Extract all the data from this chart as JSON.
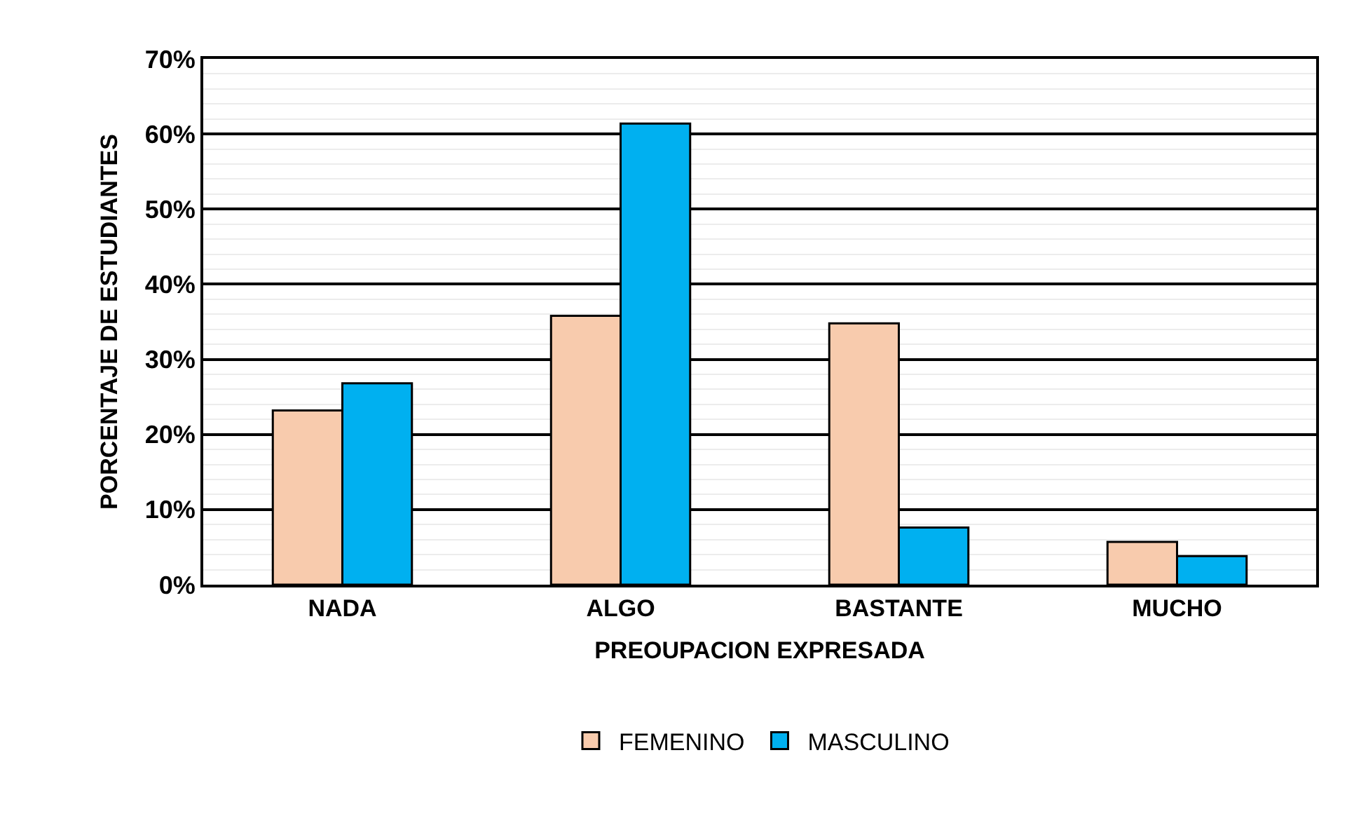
{
  "chart_data": {
    "type": "bar",
    "xlabel": "PREOUPACION EXPRESADA",
    "ylabel": "PORCENTAJE DE ESTUDIANTES",
    "categories": [
      "NADA",
      "ALGO",
      "BASTANTE",
      "MUCHO"
    ],
    "series": [
      {
        "name": "FEMENINO",
        "color": "#f8cbad",
        "values": [
          23.2,
          35.8,
          34.8,
          5.7
        ]
      },
      {
        "name": "MASCULINO",
        "color": "#00b0f0",
        "values": [
          26.8,
          61.4,
          7.6,
          3.8
        ]
      }
    ],
    "ylim": [
      0,
      70
    ],
    "yticks": [
      {
        "value": 0,
        "label": "0%"
      },
      {
        "value": 10,
        "label": "10%"
      },
      {
        "value": 20,
        "label": "20%"
      },
      {
        "value": 30,
        "label": "30%"
      },
      {
        "value": 40,
        "label": "40%"
      },
      {
        "value": 50,
        "label": "50%"
      },
      {
        "value": 60,
        "label": "60%"
      },
      {
        "value": 70,
        "label": "70%"
      }
    ],
    "grid": "y",
    "legend": "bottom"
  }
}
